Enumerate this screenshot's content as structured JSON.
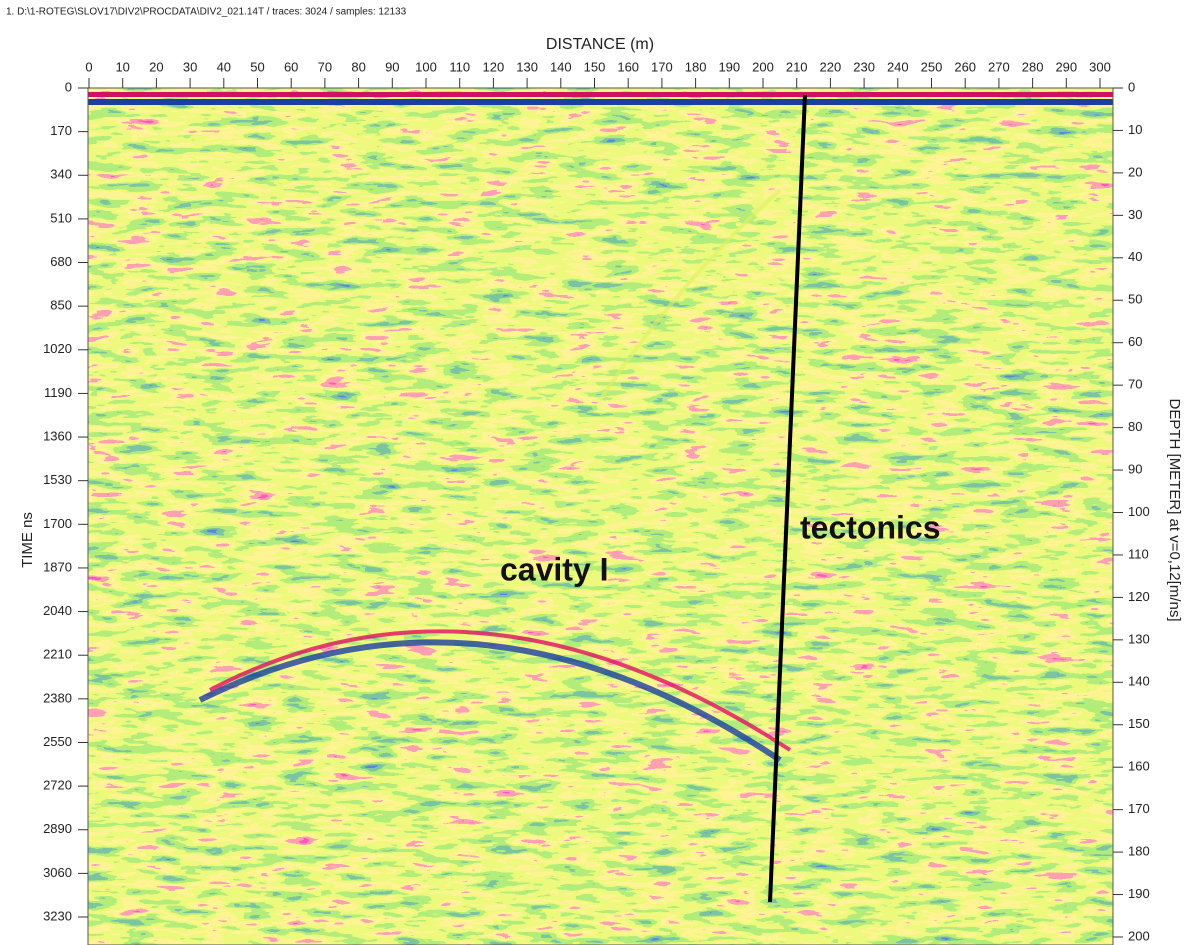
{
  "header": "1. D:\\1-ROTEG\\SLOV17\\DIV2\\PROCDATA\\DIV2_021.14T / traces: 3024 / samples: 12133",
  "x_axis": {
    "label": "DISTANCE (m)",
    "ticks": [
      0,
      10,
      20,
      30,
      40,
      50,
      60,
      70,
      80,
      90,
      100,
      110,
      120,
      130,
      140,
      150,
      160,
      170,
      180,
      190,
      200,
      210,
      220,
      230,
      240,
      250,
      260,
      270,
      280,
      290,
      300
    ]
  },
  "y_axis": {
    "label": "TIME ns",
    "ticks": [
      0,
      170,
      340,
      510,
      680,
      850,
      1020,
      1190,
      1360,
      1530,
      1700,
      1870,
      2040,
      2210,
      2380,
      2550,
      2720,
      2890,
      3060,
      3230
    ]
  },
  "y2_axis": {
    "label": "DEPTH [METER] at v=0,12[m/ns]",
    "ticks": [
      0,
      10,
      20,
      30,
      40,
      50,
      60,
      70,
      80,
      90,
      100,
      110,
      120,
      130,
      140,
      150,
      160,
      170,
      180,
      190,
      200
    ]
  },
  "annotations": [
    "cavity I",
    "tectonics"
  ]
}
